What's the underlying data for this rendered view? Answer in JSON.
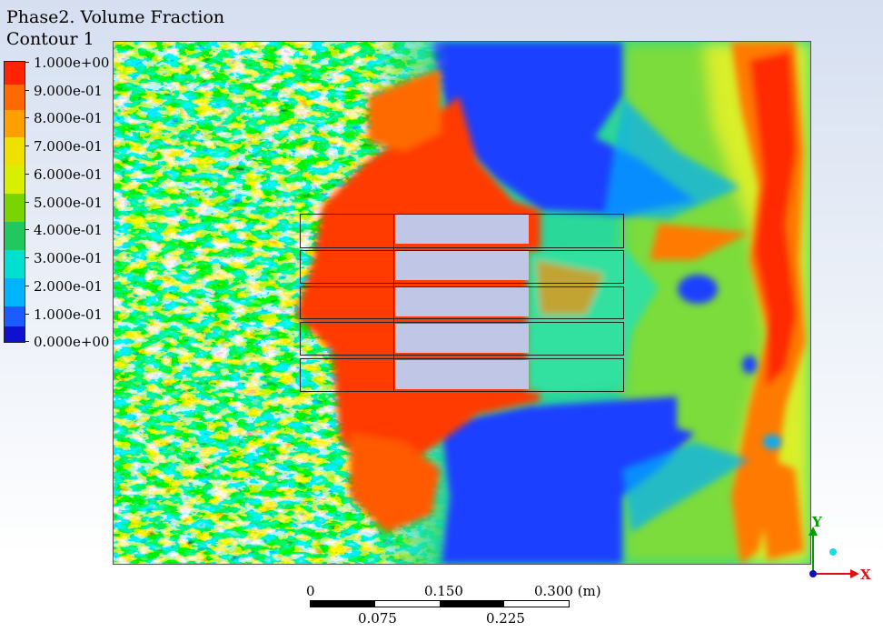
{
  "header": {
    "title": "Phase2. Volume Fraction",
    "subtitle": "Contour 1"
  },
  "legend": {
    "labels": [
      "1.000e+00",
      "9.000e-01",
      "8.000e-01",
      "7.000e-01",
      "6.000e-01",
      "5.000e-01",
      "4.000e-01",
      "3.000e-01",
      "2.000e-01",
      "1.000e-01",
      "0.000e+00"
    ],
    "colors": [
      "#ff2400",
      "#ff6a00",
      "#ffa000",
      "#ffd700",
      "#f2ff00",
      "#9aff00",
      "#2fd800",
      "#00e08a",
      "#00e8f0",
      "#00a8ff",
      "#1c3cff",
      "#1818d0"
    ]
  },
  "scale_bar": {
    "top_labels": [
      "0",
      "0.150",
      "0.300 (m)"
    ],
    "bottom_labels": [
      "0.075",
      "0.225"
    ]
  },
  "axes": {
    "y_label": "Y",
    "x_label": "X",
    "y_color": "#00a000",
    "x_color": "#e01010",
    "z_color": "#1010c0"
  }
}
